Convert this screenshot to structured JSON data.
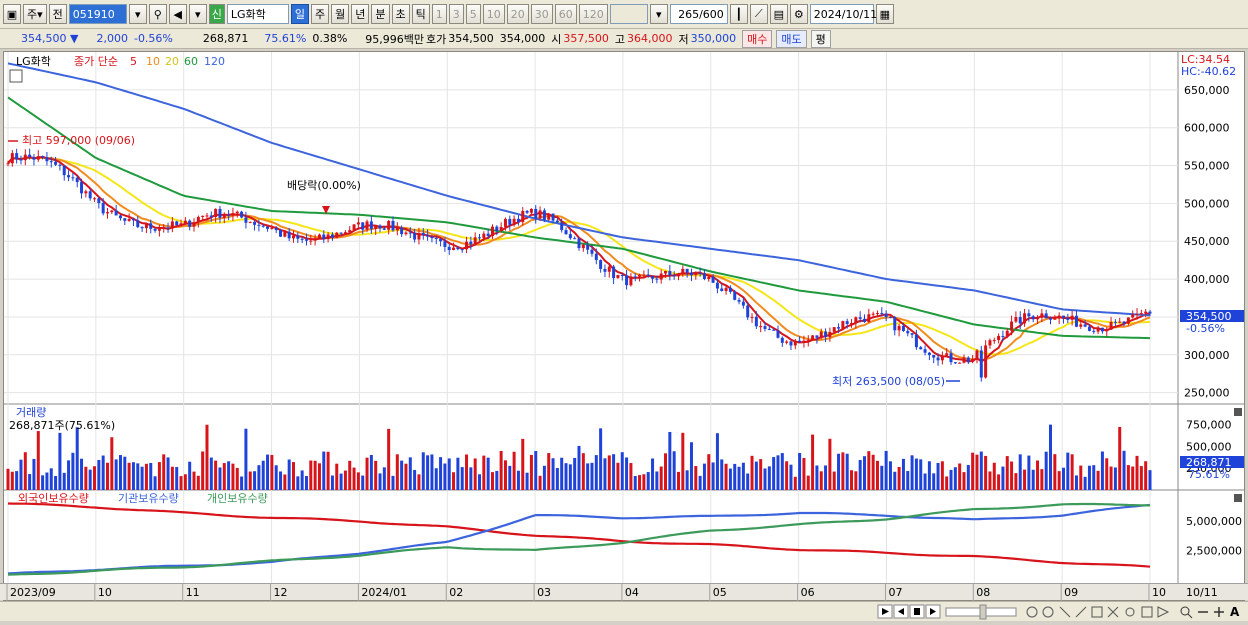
{
  "toolbar": {
    "period_stock": "주",
    "jeon_label": "전",
    "code": "051910",
    "stock_badge": "신",
    "stock_name": "LG화학",
    "periods": [
      "일",
      "주",
      "월",
      "년",
      "분",
      "초",
      "틱"
    ],
    "intervals": [
      "1",
      "3",
      "5",
      "10",
      "20",
      "30",
      "60",
      "120"
    ],
    "count": "265",
    "count_max": "/600",
    "date": "2024/10/11"
  },
  "quote": {
    "price": "354,500",
    "change": "2,000",
    "change_pct": "-0.56%",
    "volume": "268,871",
    "vol_ratio": "75.61%",
    "turnover": "0.38%",
    "amount": "95,996백만",
    "ask_label": "호가",
    "ask": "354,500",
    "bid": "354,000",
    "open_label": "시",
    "open": "357,500",
    "high_label": "고",
    "high": "364,000",
    "low_label": "저",
    "low": "350,000",
    "buy_label": "매수",
    "sell_label": "매도",
    "avg_label": "평"
  },
  "price_panel": {
    "name": "LG화학",
    "legend_title": "종가 단순",
    "ma_periods": [
      "5",
      "10",
      "20",
      "60",
      "120"
    ],
    "lc_label": "LC:34.54",
    "hc_label": "HC:-40.62",
    "high_note": "최고 597,000 (09/06)",
    "low_note": "최저 263,500 (08/05)",
    "dividend_note": "배당락(0.00%)",
    "last_price_tag": "354,500",
    "last_pct_tag": "-0.56%",
    "y_ticks": [
      "650,000",
      "600,000",
      "550,000",
      "500,000",
      "450,000",
      "400,000",
      "350,000",
      "300,000",
      "250,000"
    ]
  },
  "volume_panel": {
    "title": "거래량",
    "current": "268,871주(75.61%)",
    "y_ticks": [
      "750,000",
      "500,000",
      "250,000"
    ],
    "tag_value": "268,871",
    "tag_pct": "75.61%"
  },
  "holding_panel": {
    "legends": [
      "외국인보유수량",
      "기관보유수량",
      "개인보유수량"
    ],
    "y_ticks": [
      "5,000,000",
      "2,500,000"
    ]
  },
  "x_axis": {
    "labels": [
      "2023/09",
      "10",
      "11",
      "12",
      "2024/01",
      "02",
      "03",
      "04",
      "05",
      "06",
      "07",
      "08",
      "09",
      "10"
    ],
    "end_label": "10/11"
  },
  "colors": {
    "up": "#d8141b",
    "down": "#1f43d8",
    "ma5": "#d8141b",
    "ma10": "#f08c1e",
    "ma20": "#f5e61a",
    "ma60": "#1f9a3c",
    "ma120": "#3c64dc",
    "foreign": "#d8141b",
    "institution": "#3c64dc",
    "individual": "#3c9a5a"
  },
  "chart_data": {
    "type": "candlestick",
    "x": [
      "2023/09",
      "10",
      "11",
      "12",
      "2024/01",
      "02",
      "03",
      "04",
      "05",
      "06",
      "07",
      "08",
      "09",
      "10"
    ],
    "close_monthly": [
      560000,
      480000,
      445000,
      490000,
      480000,
      470000,
      450000,
      395000,
      385000,
      355000,
      350000,
      290000,
      320000,
      354500
    ],
    "ma120_monthly": [
      685000,
      660000,
      625000,
      580000,
      545000,
      510000,
      480000,
      455000,
      440000,
      425000,
      400000,
      385000,
      360000,
      352000
    ],
    "ma60_monthly": [
      640000,
      560000,
      510000,
      490000,
      485000,
      475000,
      455000,
      440000,
      410000,
      385000,
      370000,
      340000,
      325000,
      322000
    ],
    "high": {
      "value": 597000,
      "date": "09/06"
    },
    "low": {
      "value": 263500,
      "date": "08/05"
    },
    "ylim": [
      235000,
      700000
    ],
    "volume_ylim": [
      0,
      800000
    ],
    "holdings_ylim": [
      0,
      6800000
    ],
    "holdings_series": [
      {
        "name": "외국인보유수량",
        "values": [
          6500000,
          6200000,
          5700000,
          5300000,
          5000000,
          4500000,
          3800000,
          3300000,
          3000000,
          2600000,
          2300000,
          2000000,
          1500000,
          1100000
        ]
      },
      {
        "name": "기관보유수량",
        "values": [
          500000,
          900000,
          1200000,
          1500000,
          2300000,
          3200000,
          5500000,
          5300000,
          5400000,
          5700000,
          5500000,
          5100000,
          5500000,
          6400000
        ]
      },
      {
        "name": "개인보유수량",
        "values": [
          400000,
          800000,
          1100000,
          1600000,
          2100000,
          2800000,
          2500000,
          3200000,
          4200000,
          4700000,
          5200000,
          6000000,
          6400000,
          6400000
        ]
      }
    ]
  }
}
